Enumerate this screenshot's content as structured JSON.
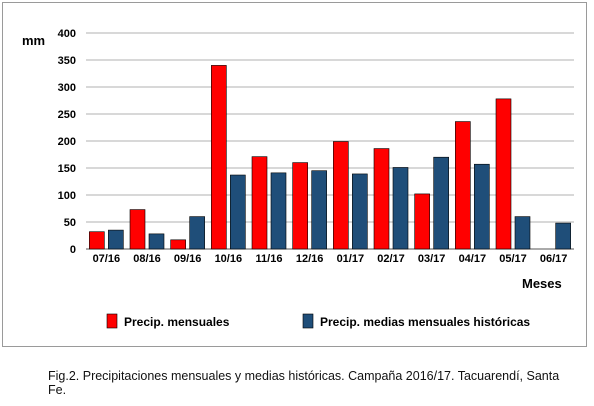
{
  "chart_data": {
    "type": "bar",
    "categories": [
      "07/16",
      "08/16",
      "09/16",
      "10/16",
      "11/16",
      "12/16",
      "01/17",
      "02/17",
      "03/17",
      "04/17",
      "05/17",
      "06/17"
    ],
    "series": [
      {
        "name": "Precip. mensuales",
        "color": "#ff0000",
        "values": [
          32,
          73,
          17,
          340,
          171,
          160,
          199,
          186,
          102,
          236,
          278,
          0
        ]
      },
      {
        "name": "Precip. medias mensuales históricas",
        "color": "#1f4e79",
        "values": [
          35,
          28,
          60,
          137,
          141,
          145,
          139,
          151,
          170,
          157,
          60,
          48
        ]
      }
    ],
    "ylabel": "mm",
    "xlabel": "Meses",
    "ylim": [
      0,
      400
    ],
    "yticks": [
      0,
      50,
      100,
      150,
      200,
      250,
      300,
      350,
      400
    ],
    "grid": true,
    "legend_position": "bottom"
  },
  "caption": "Fig.2. Precipitaciones mensuales y medias históricas. Campaña 2016/17. Tacuarendí, Santa Fe."
}
